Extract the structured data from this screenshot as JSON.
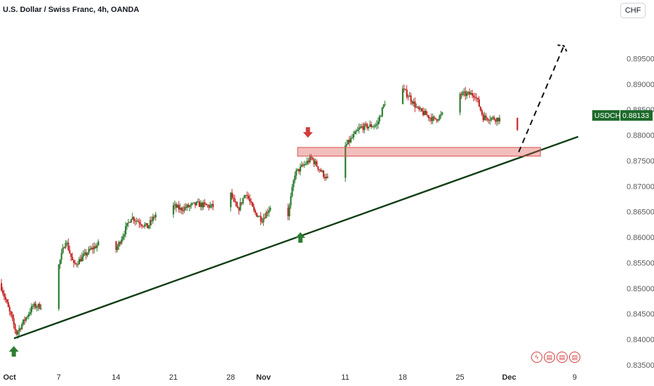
{
  "header": {
    "title": "U.S. Dollar / Swiss Franc, 4h, OANDA"
  },
  "currency_button": {
    "label": "CHF"
  },
  "last_price": {
    "symbol": "USDCHF",
    "price": "0.88133",
    "color": "#1e6b2c"
  },
  "events": [
    {
      "icon": "lightning-icon",
      "glyph": "ϟ"
    },
    {
      "icon": "calendar-event-icon",
      "glyph": "▤"
    },
    {
      "icon": "calendar-event-icon",
      "glyph": "▤"
    },
    {
      "icon": "calendar-event-icon",
      "glyph": "▤"
    }
  ],
  "colors": {
    "up": "#2e7d32",
    "down": "#c62828",
    "trendline": "#0f3d14",
    "zone": "#d9534f",
    "arrow_up": "#2e7d32",
    "arrow_down": "#d23c3c"
  },
  "chart_data": {
    "type": "candlestick",
    "title": "U.S. Dollar / Swiss Franc, 4h, OANDA",
    "y_ticks": [
      "0.89500",
      "0.89000",
      "0.88500",
      "0.88000",
      "0.87500",
      "0.87000",
      "0.86500",
      "0.86000",
      "0.85500",
      "0.85000",
      "0.84500",
      "0.84000",
      "0.83500"
    ],
    "ylim": [
      0.835,
      0.8985
    ],
    "x_ticks": [
      "Oct",
      "7",
      "14",
      "21",
      "28",
      "Nov",
      "11",
      "18",
      "25",
      "Dec",
      "9"
    ],
    "price_path": [
      {
        "date": "Sep 30",
        "price": 0.851
      },
      {
        "date": "Oct 2",
        "price": 0.8412
      },
      {
        "date": "Oct 4",
        "price": 0.8465
      },
      {
        "date": "Oct 5",
        "price": 0.8465
      },
      {
        "date": "Oct 7",
        "price": 0.8535
      },
      {
        "date": "Oct 8",
        "price": 0.8595
      },
      {
        "date": "Oct 9",
        "price": 0.8545
      },
      {
        "date": "Oct 11",
        "price": 0.8575
      },
      {
        "date": "Oct 13",
        "price": 0.8598
      },
      {
        "date": "Oct 14",
        "price": 0.857
      },
      {
        "date": "Oct 16",
        "price": 0.864
      },
      {
        "date": "Oct 18",
        "price": 0.862
      },
      {
        "date": "Oct 20",
        "price": 0.867
      },
      {
        "date": "Oct 22",
        "price": 0.8655
      },
      {
        "date": "Oct 24",
        "price": 0.8665
      },
      {
        "date": "Oct 26",
        "price": 0.866
      },
      {
        "date": "Oct 28",
        "price": 0.869
      },
      {
        "date": "Oct 29",
        "price": 0.8652
      },
      {
        "date": "Oct 30",
        "price": 0.8688
      },
      {
        "date": "Oct 31",
        "price": 0.865
      },
      {
        "date": "Nov 1",
        "price": 0.8635
      },
      {
        "date": "Nov 2",
        "price": 0.866
      },
      {
        "date": "Nov 4",
        "price": 0.8628
      },
      {
        "date": "Nov 5",
        "price": 0.8725
      },
      {
        "date": "Nov 7",
        "price": 0.8755
      },
      {
        "date": "Nov 9",
        "price": 0.8712
      },
      {
        "date": "Nov 10",
        "price": 0.8755
      },
      {
        "date": "Nov 13",
        "price": 0.8815
      },
      {
        "date": "Nov 15",
        "price": 0.882
      },
      {
        "date": "Nov 17",
        "price": 0.891
      },
      {
        "date": "Nov 19",
        "price": 0.8875
      },
      {
        "date": "Nov 20",
        "price": 0.885
      },
      {
        "date": "Nov 22",
        "price": 0.883
      },
      {
        "date": "Nov 23",
        "price": 0.884
      },
      {
        "date": "Nov 24",
        "price": 0.895
      },
      {
        "date": "Nov 25",
        "price": 0.888
      },
      {
        "date": "Nov 27",
        "price": 0.888
      },
      {
        "date": "Nov 28",
        "price": 0.8835
      },
      {
        "date": "Dec 1",
        "price": 0.883
      },
      {
        "date": "Dec 2",
        "price": 0.8805
      }
    ],
    "annotations": {
      "trendline": {
        "from": {
          "date": "Sep 30",
          "price": 0.8402
        },
        "to": {
          "date": "Dec 9",
          "price": 0.8797
        }
      },
      "resistance_zone": {
        "from": "Nov 5",
        "to": "Dec 5",
        "low": 0.8759,
        "high": 0.8776
      },
      "projection": [
        {
          "date": "Dec 2",
          "price": 0.8767
        },
        {
          "date": "Dec 7",
          "price": 0.8975
        }
      ],
      "arrows": [
        {
          "direction": "up",
          "date": "Oct 1",
          "price": 0.8387
        },
        {
          "direction": "up",
          "date": "Nov 5",
          "price": 0.861
        },
        {
          "direction": "down",
          "date": "Nov 6",
          "price": 0.8795
        }
      ]
    },
    "last_value": 0.88133,
    "grid": false
  }
}
